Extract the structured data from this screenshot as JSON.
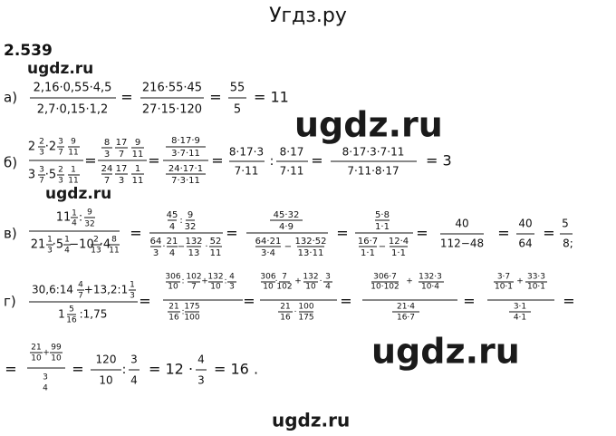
{
  "header": {
    "title": "Угдз.ру"
  },
  "problem_number": "2.539",
  "watermarks": [
    "ugdz.ru",
    "ugdz.ru",
    "ugdz.ru",
    "ugdz.ru",
    "ugdz.ru"
  ],
  "parts": [
    {
      "label": "а)",
      "tokens": [
        "2,16·0,55·4,5",
        "2,7·0,15·1,2",
        "=",
        "216·55·45",
        "27·15·120",
        "=",
        "55",
        "5",
        "= 11"
      ]
    },
    {
      "label": "б)",
      "tokens": [
        "2",
        "2",
        "3",
        "·2",
        "3",
        "7",
        "9",
        "11",
        "3",
        "3",
        "7",
        "·5",
        "2",
        "3",
        "1",
        "11",
        "=",
        "8",
        "3",
        "17",
        "7",
        "9",
        "11",
        "24",
        "7",
        "17",
        "3",
        "1",
        "11",
        "=",
        "8·17·9",
        "3·7·11",
        "24·17·1",
        "7·3·11",
        "=",
        "8·17·3",
        "7·11",
        ":",
        "8·17",
        "7·11",
        "=",
        "8·17·3·7·11",
        "7·11·8·17",
        "= 3"
      ]
    },
    {
      "label": "в)",
      "tokens": [
        "11",
        "1",
        "4",
        ":",
        "9",
        "32",
        "21",
        "1",
        "3",
        "·5",
        "1",
        "4",
        "−10",
        "2",
        "13",
        "·4",
        "8",
        "11",
        "=",
        "45",
        "4",
        ":",
        "9",
        "32",
        "64",
        "3",
        "·",
        "21",
        "4",
        "−",
        "132",
        "13",
        "·",
        "52",
        "11",
        "=",
        "45·32",
        "4·9",
        "64·21",
        "3·4",
        "−",
        "132·52",
        "13·11",
        "=",
        "5·8",
        "1·1",
        "16·7",
        "1·1",
        "−",
        "12·4",
        "1·1",
        "=",
        "40",
        "112−48",
        "=",
        "40",
        "64",
        "=",
        "5",
        "8;"
      ]
    },
    {
      "label": "г)",
      "tokens": [
        "30,6:14",
        "4",
        "7",
        "+13,2:1",
        "1",
        "3",
        "1",
        "5",
        "16",
        ":1,75",
        "=",
        "306",
        "10",
        ":",
        "102",
        "7",
        "+",
        "132",
        "10",
        ":",
        "4",
        "3",
        "21",
        "16",
        ":",
        "175",
        "100",
        "=",
        "306",
        "10",
        "·",
        "7",
        "102",
        "+",
        "132",
        "10",
        "·",
        "3",
        "4",
        "21",
        "16",
        "·",
        "100",
        "175",
        "=",
        "306·7",
        "10·102",
        "+",
        "132·3",
        "10·4",
        "21·4",
        "16·7",
        "=",
        "3·7",
        "10·1",
        "+",
        "33·3",
        "10·1",
        "3·1",
        "4·1",
        "="
      ]
    }
  ],
  "continuation": {
    "tokens": [
      "=",
      "21",
      "10",
      "+",
      "99",
      "10",
      "3",
      "4",
      "=",
      "120",
      "10",
      ":",
      "3",
      "4",
      "= 12 ·",
      "4",
      "3",
      "= 16 ."
    ]
  }
}
